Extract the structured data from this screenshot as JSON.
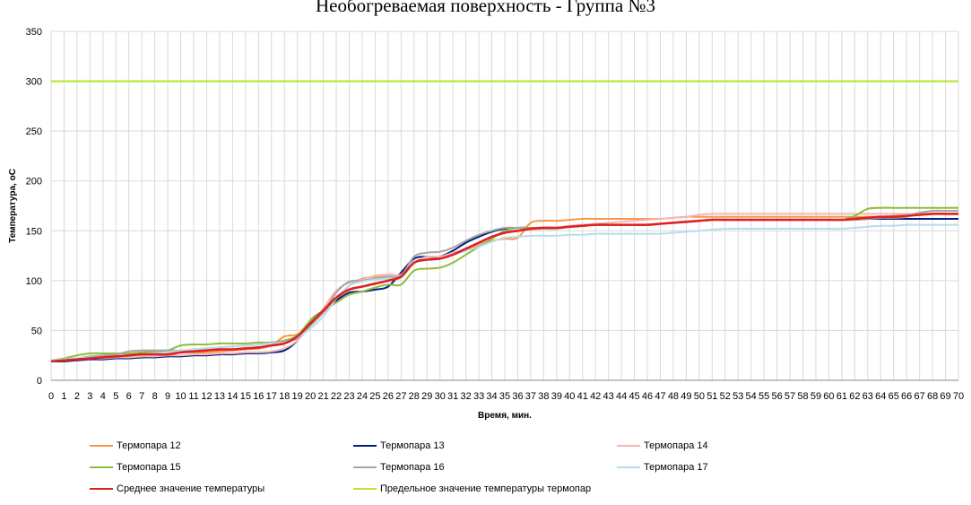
{
  "chart_data": {
    "type": "line",
    "title": "Необогреваемая поверхность - Группа №3",
    "xlabel": "Время, мин.",
    "ylabel": "Температура, оС",
    "xlim": [
      0,
      70
    ],
    "ylim": [
      0,
      350
    ],
    "yticks": [
      0,
      50,
      100,
      150,
      200,
      250,
      300,
      350
    ],
    "grid": true,
    "legend_position": "bottom",
    "x": [
      0,
      1,
      2,
      3,
      4,
      5,
      6,
      7,
      8,
      9,
      10,
      11,
      12,
      13,
      14,
      15,
      16,
      17,
      18,
      19,
      20,
      21,
      22,
      23,
      24,
      25,
      26,
      27,
      28,
      29,
      30,
      31,
      32,
      33,
      34,
      35,
      36,
      37,
      38,
      39,
      40,
      41,
      42,
      43,
      44,
      45,
      46,
      47,
      48,
      49,
      50,
      51,
      52,
      53,
      54,
      55,
      56,
      57,
      58,
      59,
      60,
      61,
      62,
      63,
      64,
      65,
      66,
      67,
      68,
      69,
      70
    ],
    "series": [
      {
        "name": "Термопара 12",
        "color": "#f79646",
        "width": 2,
        "values": [
          20,
          20,
          21,
          22,
          23,
          24,
          25,
          26,
          27,
          27,
          28,
          28,
          28,
          29,
          30,
          31,
          32,
          35,
          44,
          46,
          55,
          68,
          80,
          95,
          102,
          104,
          106,
          106,
          118,
          122,
          123,
          127,
          131,
          135,
          140,
          142,
          143,
          158,
          160,
          160,
          161,
          162,
          162,
          162,
          162,
          162,
          162,
          162,
          163,
          164,
          164,
          164,
          164,
          164,
          164,
          164,
          164,
          164,
          164,
          164,
          164,
          164,
          164,
          164,
          164,
          165,
          166,
          168,
          170,
          170,
          170
        ]
      },
      {
        "name": "Термопара 13",
        "color": "#002080",
        "width": 2,
        "values": [
          19,
          19,
          20,
          21,
          21,
          22,
          22,
          23,
          23,
          24,
          24,
          25,
          25,
          26,
          26,
          27,
          27,
          28,
          30,
          40,
          60,
          70,
          80,
          88,
          89,
          91,
          94,
          108,
          122,
          124,
          124,
          130,
          138,
          144,
          149,
          152,
          153,
          153,
          153,
          153,
          154,
          155,
          156,
          156,
          156,
          156,
          156,
          157,
          158,
          159,
          160,
          161,
          161,
          161,
          161,
          161,
          161,
          161,
          161,
          161,
          161,
          161,
          161,
          162,
          162,
          162,
          162,
          162,
          162,
          162,
          162
        ]
      },
      {
        "name": "Термопара 14",
        "color": "#f2b8b8",
        "width": 2,
        "values": [
          20,
          21,
          21,
          22,
          22,
          23,
          23,
          24,
          24,
          25,
          25,
          26,
          26,
          27,
          27,
          28,
          28,
          29,
          32,
          40,
          55,
          72,
          90,
          98,
          101,
          105,
          106,
          106,
          118,
          124,
          124,
          128,
          132,
          137,
          143,
          148,
          150,
          151,
          152,
          153,
          155,
          156,
          157,
          158,
          159,
          160,
          161,
          162,
          163,
          164,
          166,
          167,
          167,
          167,
          167,
          167,
          167,
          167,
          167,
          167,
          167,
          167,
          167,
          167,
          167,
          167,
          167,
          167,
          167,
          167,
          167
        ]
      },
      {
        "name": "Термопара 15",
        "color": "#8ebd3c",
        "width": 2,
        "values": [
          20,
          22,
          25,
          27,
          27,
          27,
          27,
          28,
          29,
          30,
          35,
          36,
          36,
          37,
          37,
          37,
          38,
          38,
          40,
          45,
          60,
          70,
          78,
          86,
          89,
          93,
          96,
          96,
          110,
          112,
          113,
          118,
          126,
          134,
          142,
          150,
          153,
          153,
          153,
          153,
          154,
          155,
          156,
          156,
          156,
          156,
          156,
          157,
          158,
          159,
          160,
          161,
          161,
          161,
          161,
          161,
          161,
          161,
          161,
          161,
          161,
          161,
          165,
          172,
          173,
          173,
          173,
          173,
          173,
          173,
          173
        ]
      },
      {
        "name": "Термопара 16",
        "color": "#a6a6a6",
        "width": 2,
        "values": [
          20,
          21,
          22,
          24,
          25,
          26,
          29,
          30,
          30,
          30,
          30,
          31,
          32,
          33,
          34,
          35,
          36,
          38,
          39,
          42,
          55,
          68,
          88,
          99,
          100,
          102,
          104,
          105,
          124,
          128,
          129,
          133,
          140,
          146,
          150,
          153,
          153,
          152,
          152,
          152,
          154,
          155,
          156,
          156,
          156,
          156,
          156,
          157,
          158,
          159,
          160,
          161,
          161,
          161,
          161,
          161,
          161,
          161,
          161,
          161,
          161,
          161,
          161,
          162,
          163,
          163,
          164,
          168,
          170,
          170,
          170
        ]
      },
      {
        "name": "Термопара 17",
        "color": "#b7dde8",
        "width": 2,
        "values": [
          20,
          21,
          22,
          23,
          23,
          24,
          25,
          26,
          27,
          28,
          30,
          31,
          32,
          33,
          34,
          35,
          36,
          37,
          38,
          43,
          52,
          64,
          82,
          95,
          99,
          101,
          102,
          103,
          118,
          122,
          122,
          126,
          130,
          134,
          139,
          143,
          144,
          145,
          145,
          145,
          146,
          146,
          147,
          147,
          147,
          147,
          147,
          147,
          148,
          149,
          150,
          151,
          152,
          152,
          152,
          152,
          152,
          152,
          152,
          152,
          152,
          152,
          153,
          154,
          155,
          155,
          156,
          156,
          156,
          156,
          156
        ]
      },
      {
        "name": "Среднее значение температуры",
        "color": "#e02020",
        "width": 2.6,
        "values": [
          19,
          20,
          21,
          22,
          23,
          24,
          25,
          26,
          26,
          26,
          28,
          29,
          30,
          31,
          31,
          32,
          33,
          35,
          37,
          44,
          57,
          70,
          83,
          91,
          94,
          97,
          100,
          104,
          118,
          121,
          122,
          126,
          132,
          138,
          144,
          148,
          150,
          152,
          153,
          153,
          154,
          155,
          156,
          156,
          156,
          156,
          156,
          157,
          158,
          159,
          160,
          161,
          161,
          161,
          161,
          161,
          161,
          161,
          161,
          161,
          161,
          161,
          162,
          163,
          164,
          164,
          165,
          166,
          167,
          167,
          167
        ]
      },
      {
        "name": "Предельное значение температуры термопар",
        "color": "#b8e830",
        "width": 2.2,
        "values": [
          300,
          300,
          300,
          300,
          300,
          300,
          300,
          300,
          300,
          300,
          300,
          300,
          300,
          300,
          300,
          300,
          300,
          300,
          300,
          300,
          300,
          300,
          300,
          300,
          300,
          300,
          300,
          300,
          300,
          300,
          300,
          300,
          300,
          300,
          300,
          300,
          300,
          300,
          300,
          300,
          300,
          300,
          300,
          300,
          300,
          300,
          300,
          300,
          300,
          300,
          300,
          300,
          300,
          300,
          300,
          300,
          300,
          300,
          300,
          300,
          300,
          300,
          300,
          300,
          300,
          300,
          300,
          300,
          300,
          300,
          300
        ]
      }
    ]
  }
}
